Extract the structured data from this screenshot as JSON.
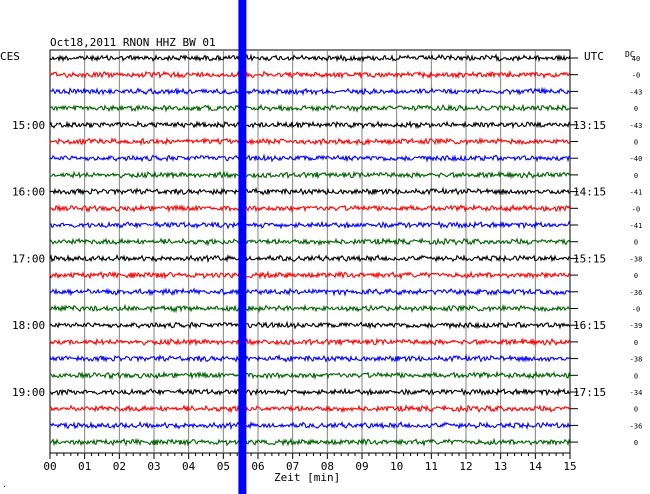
{
  "chart_data": {
    "type": "line",
    "title": "Oct18,2011   RNON HHZ BW 01",
    "left_timezone": "CES",
    "right_timezone": "UTC",
    "dc_header": "DC",
    "xlabel": "Zeit [min]",
    "xlim": [
      0,
      15
    ],
    "x_ticks": [
      "00",
      "01",
      "02",
      "03",
      "04",
      "05",
      "06",
      "07",
      "08",
      "09",
      "10",
      "11",
      "12",
      "13",
      "14",
      "15"
    ],
    "line_count": 24,
    "line_colors": [
      "#000000",
      "#ff0000",
      "#0000ff",
      "#006400"
    ],
    "left_time_labels": [
      {
        "line": 4,
        "text": "15:00"
      },
      {
        "line": 8,
        "text": "16:00"
      },
      {
        "line": 12,
        "text": "17:00"
      },
      {
        "line": 16,
        "text": "18:00"
      },
      {
        "line": 20,
        "text": "19:00"
      }
    ],
    "right_time_labels": [
      {
        "line": 4,
        "text": "13:15"
      },
      {
        "line": 8,
        "text": "14:15"
      },
      {
        "line": 12,
        "text": "15:15"
      },
      {
        "line": 16,
        "text": "16:15"
      },
      {
        "line": 20,
        "text": "17:15"
      }
    ],
    "dc_values": [
      "40",
      "-0",
      "-43",
      "0",
      "-43",
      "0",
      "-40",
      "0",
      "-41",
      "-0",
      "-41",
      "0",
      "-38",
      "0",
      "-36",
      "-0",
      "-39",
      "0",
      "-38",
      "0",
      "-34",
      "0",
      "-36",
      "0"
    ],
    "event_marker": {
      "x_min": 5.55,
      "color": "#0000ff"
    },
    "grid": true,
    "footnote": "."
  }
}
